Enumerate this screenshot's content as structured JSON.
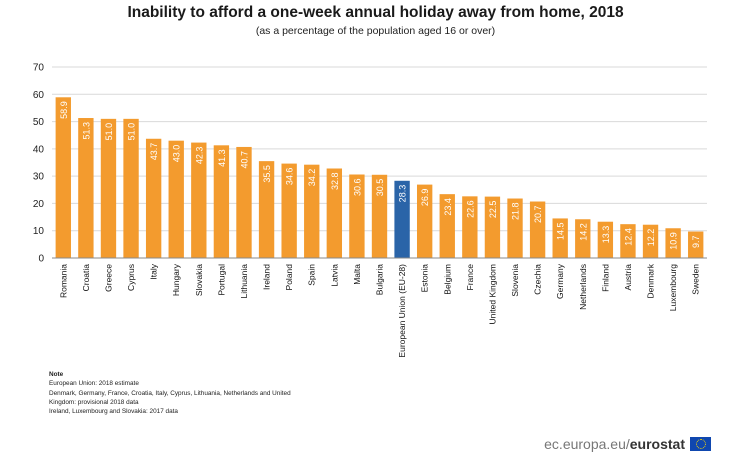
{
  "chart_data": {
    "type": "bar",
    "title": "Inability to afford a one-week annual holiday away from home, 2018",
    "subtitle": "(as a percentage of the population aged 16 or over)",
    "categories": [
      "Romania",
      "Croatia",
      "Greece",
      "Cyprus",
      "Italy",
      "Hungary",
      "Slovakia",
      "Portugal",
      "Lithuania",
      "Ireland",
      "Poland",
      "Spain",
      "Latvia",
      "Malta",
      "Bulgaria",
      "European Union (EU-28)",
      "Estonia",
      "Belgium",
      "France",
      "United Kingdom",
      "Slovenia",
      "Czechia",
      "Germany",
      "Netherlands",
      "Finland",
      "Austria",
      "Denmark",
      "Luxembourg",
      "Sweden"
    ],
    "values": [
      58.9,
      51.3,
      51.0,
      51.0,
      43.7,
      43.0,
      42.3,
      41.3,
      40.7,
      35.5,
      34.6,
      34.2,
      32.8,
      30.6,
      30.5,
      28.3,
      26.9,
      23.4,
      22.6,
      22.5,
      21.8,
      20.7,
      14.5,
      14.2,
      13.3,
      12.4,
      12.2,
      10.9,
      9.7
    ],
    "data_labels": [
      "58.9",
      "51.3",
      "51.0",
      "51.0",
      "43.7",
      "43.0",
      "42.3",
      "41.3",
      "40.7",
      "35.5",
      "34.6",
      "34.2",
      "32.8",
      "30.6",
      "30.5",
      "28.3",
      "26.9",
      "23.4",
      "22.6",
      "22.5",
      "21.8",
      "20.7",
      "14.5",
      "14.2",
      "13.3",
      "12.4",
      "12.2",
      "10.9",
      "9.7"
    ],
    "highlight_category": "European Union (EU-28)",
    "ylim": [
      0,
      70
    ],
    "yticks": [
      0,
      10,
      20,
      30,
      40,
      50,
      60,
      70
    ],
    "grid": true,
    "colors": {
      "bar": "#f39b2e",
      "highlight": "#2a64a8",
      "grid": "#d9d9d9",
      "label": "#ffffff"
    }
  },
  "note": {
    "heading": "Note",
    "lines": [
      "European Union: 2018  estimate",
      "Denmark, Germany, France, Croatia, Italy, Cyprus, Lithuania, Netherlands and United",
      "Kingdom: provisional 2018 data",
      "Ireland, Luxembourg and Slovakia: 2017 data"
    ]
  },
  "footer": {
    "domain": "ec.europa.eu/",
    "brand": "eurostat",
    "flag_icon": "eu-flag-icon"
  }
}
